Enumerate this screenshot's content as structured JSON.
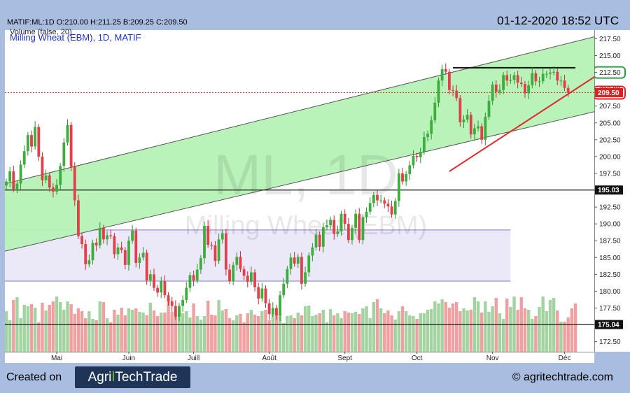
{
  "header": {
    "symbol_line": "MATIF:ML:1D O:210.00 H:211.25 B:209.25 C:209.50",
    "datetime": "01-12-2020 18:52 UTC"
  },
  "footer": {
    "created_label": "Created on",
    "logo_part1": "Agri",
    "logo_part2": "TechTrade",
    "url": "© agritechtrade.com"
  },
  "colors": {
    "up": "#3cae3c",
    "down": "#e0404a",
    "vol_up": "#a3d3a0",
    "vol_down": "#f0a0a0",
    "channel_fill": "#b6f2b6",
    "range_fill": "#ebe8f7",
    "background": "#a8bde0"
  },
  "chart_data": {
    "type": "candlestick",
    "title": "Milling Wheat (EBM), 1D, MATIF",
    "watermark_main": "ML, 1D",
    "watermark_sub": "Milling Wheat (EBM)",
    "volume_label": "Volume (false, 20)",
    "ylim": [
      171.0,
      218.8
    ],
    "yticks": [
      172.5,
      175.0,
      177.5,
      180.0,
      182.5,
      185.0,
      187.5,
      190.0,
      192.5,
      195.0,
      197.5,
      200.0,
      202.5,
      205.0,
      207.5,
      210.0,
      212.5,
      215.0,
      217.5
    ],
    "ytick_labels": [
      "172.50",
      "175.00",
      "177.50",
      "180.00",
      "182.50",
      "185.00",
      "187.50",
      "190.00",
      "192.50",
      "195.00",
      "197.50",
      "200.00",
      "202.50",
      "205.00",
      "207.50",
      "210.00",
      "212.50",
      "215.00",
      "217.50"
    ],
    "x_labels": [
      {
        "label": "Mai",
        "bar": 14
      },
      {
        "label": "Juin",
        "bar": 34
      },
      {
        "label": "Juill",
        "bar": 52
      },
      {
        "label": "Août",
        "bar": 73
      },
      {
        "label": "Sept",
        "bar": 94
      },
      {
        "label": "Oct",
        "bar": 114
      },
      {
        "label": "Nov",
        "bar": 135
      },
      {
        "label": "Déc",
        "bar": 155
      }
    ],
    "bar_count": 159,
    "closes": [
      196.3,
      197.8,
      195.2,
      196.0,
      198.8,
      200.8,
      203.2,
      201.5,
      204.4,
      200.0,
      196.5,
      197.2,
      195.4,
      194.8,
      195.8,
      198.6,
      202.1,
      204.7,
      198.5,
      193.5,
      188.2,
      187.0,
      184.0,
      184.6,
      187.2,
      186.8,
      189.4,
      187.7,
      188.3,
      188.2,
      185.5,
      186.5,
      186.1,
      183.9,
      187.5,
      189.0,
      184.2,
      185.0,
      185.7,
      181.6,
      182.5,
      180.5,
      179.8,
      181.5,
      179.4,
      178.5,
      177.8,
      176.2,
      177.8,
      178.7,
      180.5,
      182.4,
      181.6,
      183.2,
      184.9,
      189.7,
      186.9,
      186.8,
      184.5,
      187.7,
      188.6,
      183.2,
      181.5,
      183.9,
      185.1,
      183.3,
      182.3,
      181.4,
      182.8,
      180.6,
      178.9,
      180.4,
      178.2,
      176.6,
      177.5,
      176.4,
      179.4,
      181.1,
      183.3,
      185.0,
      184.1,
      185.1,
      181.1,
      182.8,
      185.3,
      186.5,
      188.4,
      186.6,
      189.5,
      189.8,
      190.6,
      188.5,
      188.9,
      191.5,
      190.0,
      187.6,
      189.4,
      191.5,
      187.6,
      191.0,
      191.8,
      193.1,
      194.3,
      193.5,
      193.5,
      193.0,
      192.6,
      191.4,
      193.4,
      197.5,
      196.3,
      197.4,
      198.7,
      200.1,
      199.9,
      200.7,
      202.9,
      203.4,
      205.4,
      208.0,
      211.3,
      213.0,
      212.6,
      209.9,
      209.8,
      208.7,
      205.1,
      205.5,
      206.2,
      203.3,
      204.2,
      204.5,
      202.5,
      205.9,
      208.3,
      210.7,
      209.6,
      209.9,
      212.1,
      211.3,
      211.4,
      212.1,
      211.0,
      210.8,
      209.4,
      210.6,
      212.4,
      211.2,
      211.2,
      212.3,
      212.3,
      212.5,
      212.6,
      211.3,
      211.3,
      210.2,
      209.5
    ],
    "volumes": [
      58,
      45,
      74,
      78,
      48,
      67,
      65,
      68,
      63,
      42,
      70,
      59,
      67,
      72,
      79,
      71,
      60,
      72,
      68,
      54,
      62,
      58,
      48,
      58,
      47,
      45,
      72,
      71,
      48,
      42,
      60,
      53,
      63,
      52,
      62,
      60,
      62,
      57,
      56,
      52,
      70,
      59,
      51,
      56,
      56,
      76,
      57,
      50,
      62,
      55,
      58,
      49,
      69,
      51,
      46,
      51,
      73,
      53,
      52,
      74,
      59,
      61,
      48,
      45,
      52,
      54,
      42,
      55,
      60,
      53,
      51,
      58,
      60,
      45,
      54,
      56,
      54,
      41,
      51,
      52,
      48,
      56,
      52,
      65,
      66,
      51,
      53,
      55,
      60,
      42,
      61,
      52,
      55,
      48,
      58,
      56,
      55,
      57,
      54,
      62,
      65,
      48,
      71,
      75,
      62,
      55,
      59,
      52,
      46,
      58,
      65,
      58,
      52,
      51,
      47,
      55,
      55,
      60,
      61,
      72,
      69,
      75,
      71,
      63,
      69,
      71,
      58,
      62,
      59,
      60,
      78,
      72,
      56,
      72,
      57,
      65,
      77,
      55,
      47,
      76,
      64,
      79,
      60,
      78,
      62,
      60,
      47,
      51,
      64,
      79,
      58,
      74,
      77,
      59,
      43,
      43,
      49,
      62,
      69
    ],
    "channel": {
      "upper": [
        [
          0,
          196.0
        ],
        [
          158,
          217.1
        ]
      ],
      "lower": [
        [
          0,
          186.0
        ],
        [
          158,
          206.0
        ]
      ]
    },
    "range_zone": {
      "top": 189.1,
      "bottom": 181.5,
      "from_bar": 0,
      "to_bar": 140
    },
    "resistance": {
      "level": 213.2,
      "from_bar": 124,
      "to_bar": 158
    },
    "trendline": {
      "from": [
        123,
        197.8
      ],
      "to": [
        158,
        210.0
      ]
    },
    "hlines": [
      {
        "level": 195.03,
        "label": "195.03"
      },
      {
        "level": 175.04,
        "label": "175.04"
      }
    ],
    "last_price": {
      "level": 209.5,
      "label": "209.50"
    },
    "resistance_label": "212.50"
  }
}
